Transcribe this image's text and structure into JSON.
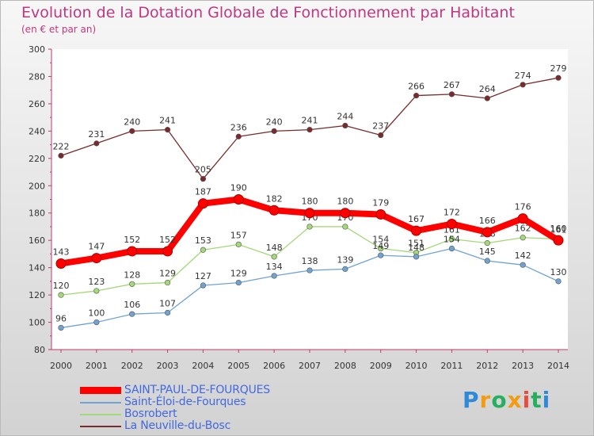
{
  "title": "Evolution de la Dotation Globale de Fonctionnement par Habitant",
  "subtitle": "(en € et par an)",
  "logo": {
    "letters": [
      "P",
      "r",
      "o",
      "x",
      "i",
      "t",
      "i"
    ],
    "colors": [
      "#2e8ad8",
      "#f39c12",
      "#27ae60",
      "#f39c12",
      "#e74c3c",
      "#27ae60",
      "#2e8ad8"
    ]
  },
  "chart_data": {
    "type": "line",
    "title": "Evolution de la Dotation Globale de Fonctionnement par Habitant",
    "subtitle": "(en € et par an)",
    "xlabel": "",
    "ylabel": "",
    "ylim": [
      80,
      300
    ],
    "yticks": [
      80,
      100,
      120,
      140,
      160,
      180,
      200,
      220,
      240,
      260,
      280,
      300
    ],
    "grid": false,
    "legend_position": "bottom-left",
    "x": [
      2000,
      2001,
      2002,
      2003,
      2004,
      2005,
      2006,
      2007,
      2008,
      2009,
      2010,
      2011,
      2012,
      2013,
      2014
    ],
    "series": [
      {
        "name": "La Neuville-du-Bosc",
        "color": "#7a2a2a",
        "highlight": false,
        "values": [
          222,
          231,
          240,
          241,
          205,
          236,
          240,
          241,
          244,
          237,
          266,
          267,
          264,
          274,
          279
        ]
      },
      {
        "name": "Bosrobert",
        "color": "#a3d977",
        "highlight": false,
        "values": [
          120,
          123,
          128,
          129,
          153,
          157,
          148,
          170,
          170,
          154,
          151,
          161,
          158,
          162,
          161
        ]
      },
      {
        "name": "Saint-Éloi-de-Fourques",
        "color": "#6fa3d4",
        "highlight": false,
        "values": [
          96,
          100,
          106,
          107,
          127,
          129,
          134,
          138,
          139,
          149,
          148,
          154,
          145,
          142,
          130
        ]
      },
      {
        "name": "SAINT-PAUL-DE-FOURQUES",
        "color": "#ff0000",
        "highlight": true,
        "values": [
          143,
          147,
          152,
          152,
          187,
          190,
          182,
          180,
          180,
          179,
          167,
          172,
          166,
          176,
          160
        ]
      }
    ],
    "legend_order": [
      "SAINT-PAUL-DE-FOURQUES",
      "Saint-Éloi-de-Fourques",
      "Bosrobert",
      "La Neuville-du-Bosc"
    ]
  }
}
